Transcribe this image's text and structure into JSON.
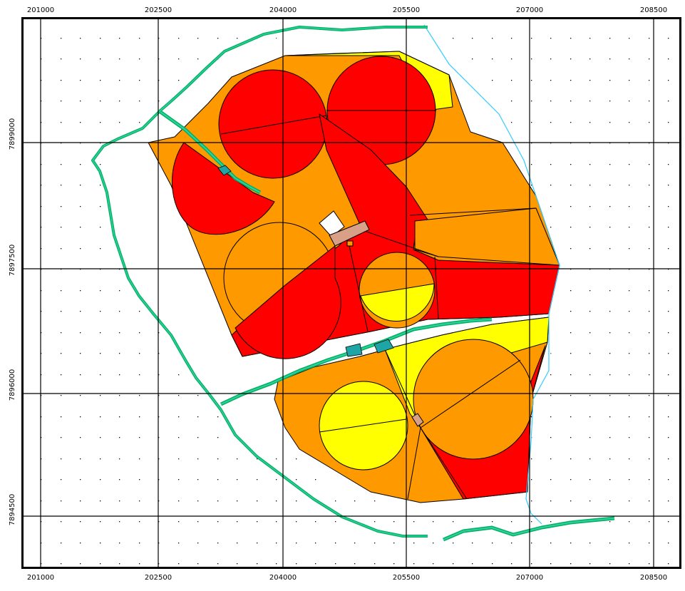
{
  "map": {
    "x_ticks": [
      "201000",
      "202500",
      "204000",
      "205500",
      "207000",
      "208500"
    ],
    "y_ticks": [
      "7899000",
      "7897500",
      "7896000",
      "7894500"
    ],
    "colors": {
      "red": "#ff0000",
      "orange": "#ff9900",
      "yellow": "#ffff00",
      "river": "#00b060",
      "river_core": "#30d0a0",
      "stream": "#33ccff",
      "pond": "#1fa5a5",
      "building": "#d9a088"
    }
  }
}
